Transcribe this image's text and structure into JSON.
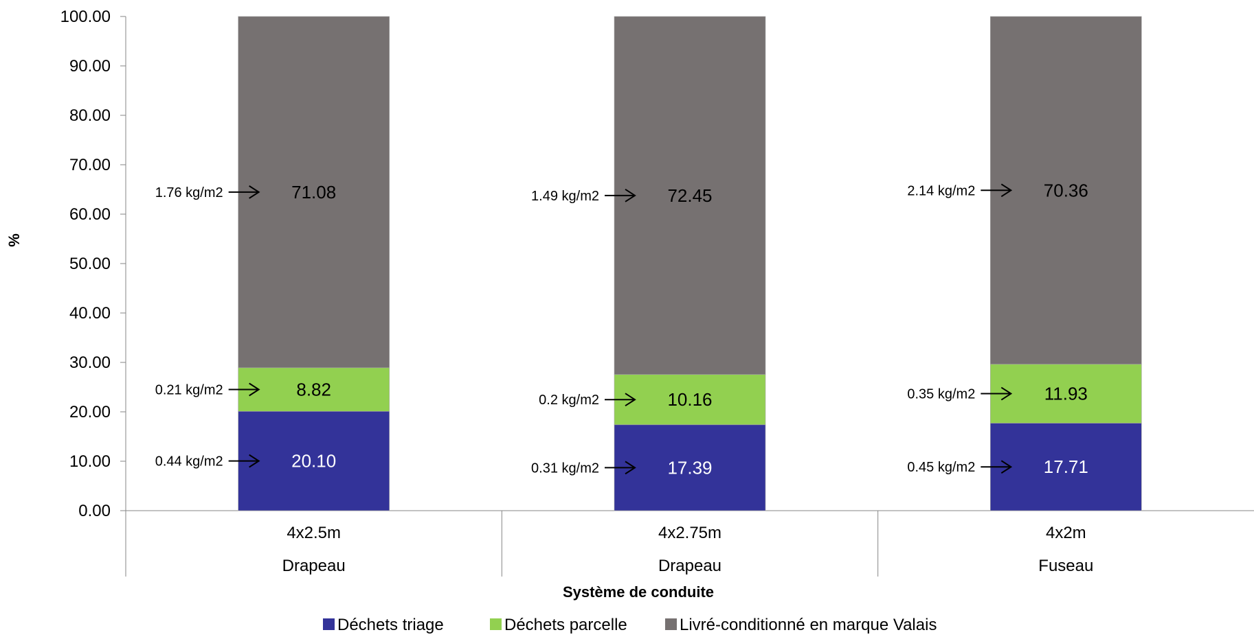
{
  "chart_data": {
    "type": "bar",
    "stacked": true,
    "title": "",
    "xlabel": "Système de conduite",
    "ylabel": "%",
    "ylim": [
      0,
      100
    ],
    "yticks": [
      "0.00",
      "10.00",
      "20.00",
      "30.00",
      "40.00",
      "50.00",
      "60.00",
      "70.00",
      "80.00",
      "90.00",
      "100.00"
    ],
    "categories": [
      {
        "line1": "4x2.5m",
        "line2": "Drapeau"
      },
      {
        "line1": "4x2.75m",
        "line2": "Drapeau"
      },
      {
        "line1": "4x2m",
        "line2": "Fuseau"
      }
    ],
    "series": [
      {
        "name": "Déchets triage",
        "color": "#333399",
        "label_color": "#ffffff",
        "values": [
          20.1,
          17.39,
          17.71
        ],
        "labels": [
          "20.10",
          "17.39",
          "17.71"
        ],
        "annotations": [
          "0.44 kg/m2",
          "0.31 kg/m2",
          "0.45 kg/m2"
        ]
      },
      {
        "name": "Déchets parcelle",
        "color": "#92d050",
        "label_color": "#000000",
        "values": [
          8.82,
          10.16,
          11.93
        ],
        "labels": [
          "8.82",
          "10.16",
          "11.93"
        ],
        "annotations": [
          "0.21 kg/m2",
          "0.2 kg/m2",
          "0.35 kg/m2"
        ]
      },
      {
        "name": "Livré-conditionné en marque Valais",
        "color": "#767171",
        "label_color": "#000000",
        "values": [
          71.08,
          72.45,
          70.36
        ],
        "labels": [
          "71.08",
          "72.45",
          "70.36"
        ],
        "annotations": [
          "1.76 kg/m2",
          "1.49 kg/m2",
          "2.14 kg/m2"
        ]
      }
    ],
    "grid": false,
    "legend_position": "bottom"
  }
}
